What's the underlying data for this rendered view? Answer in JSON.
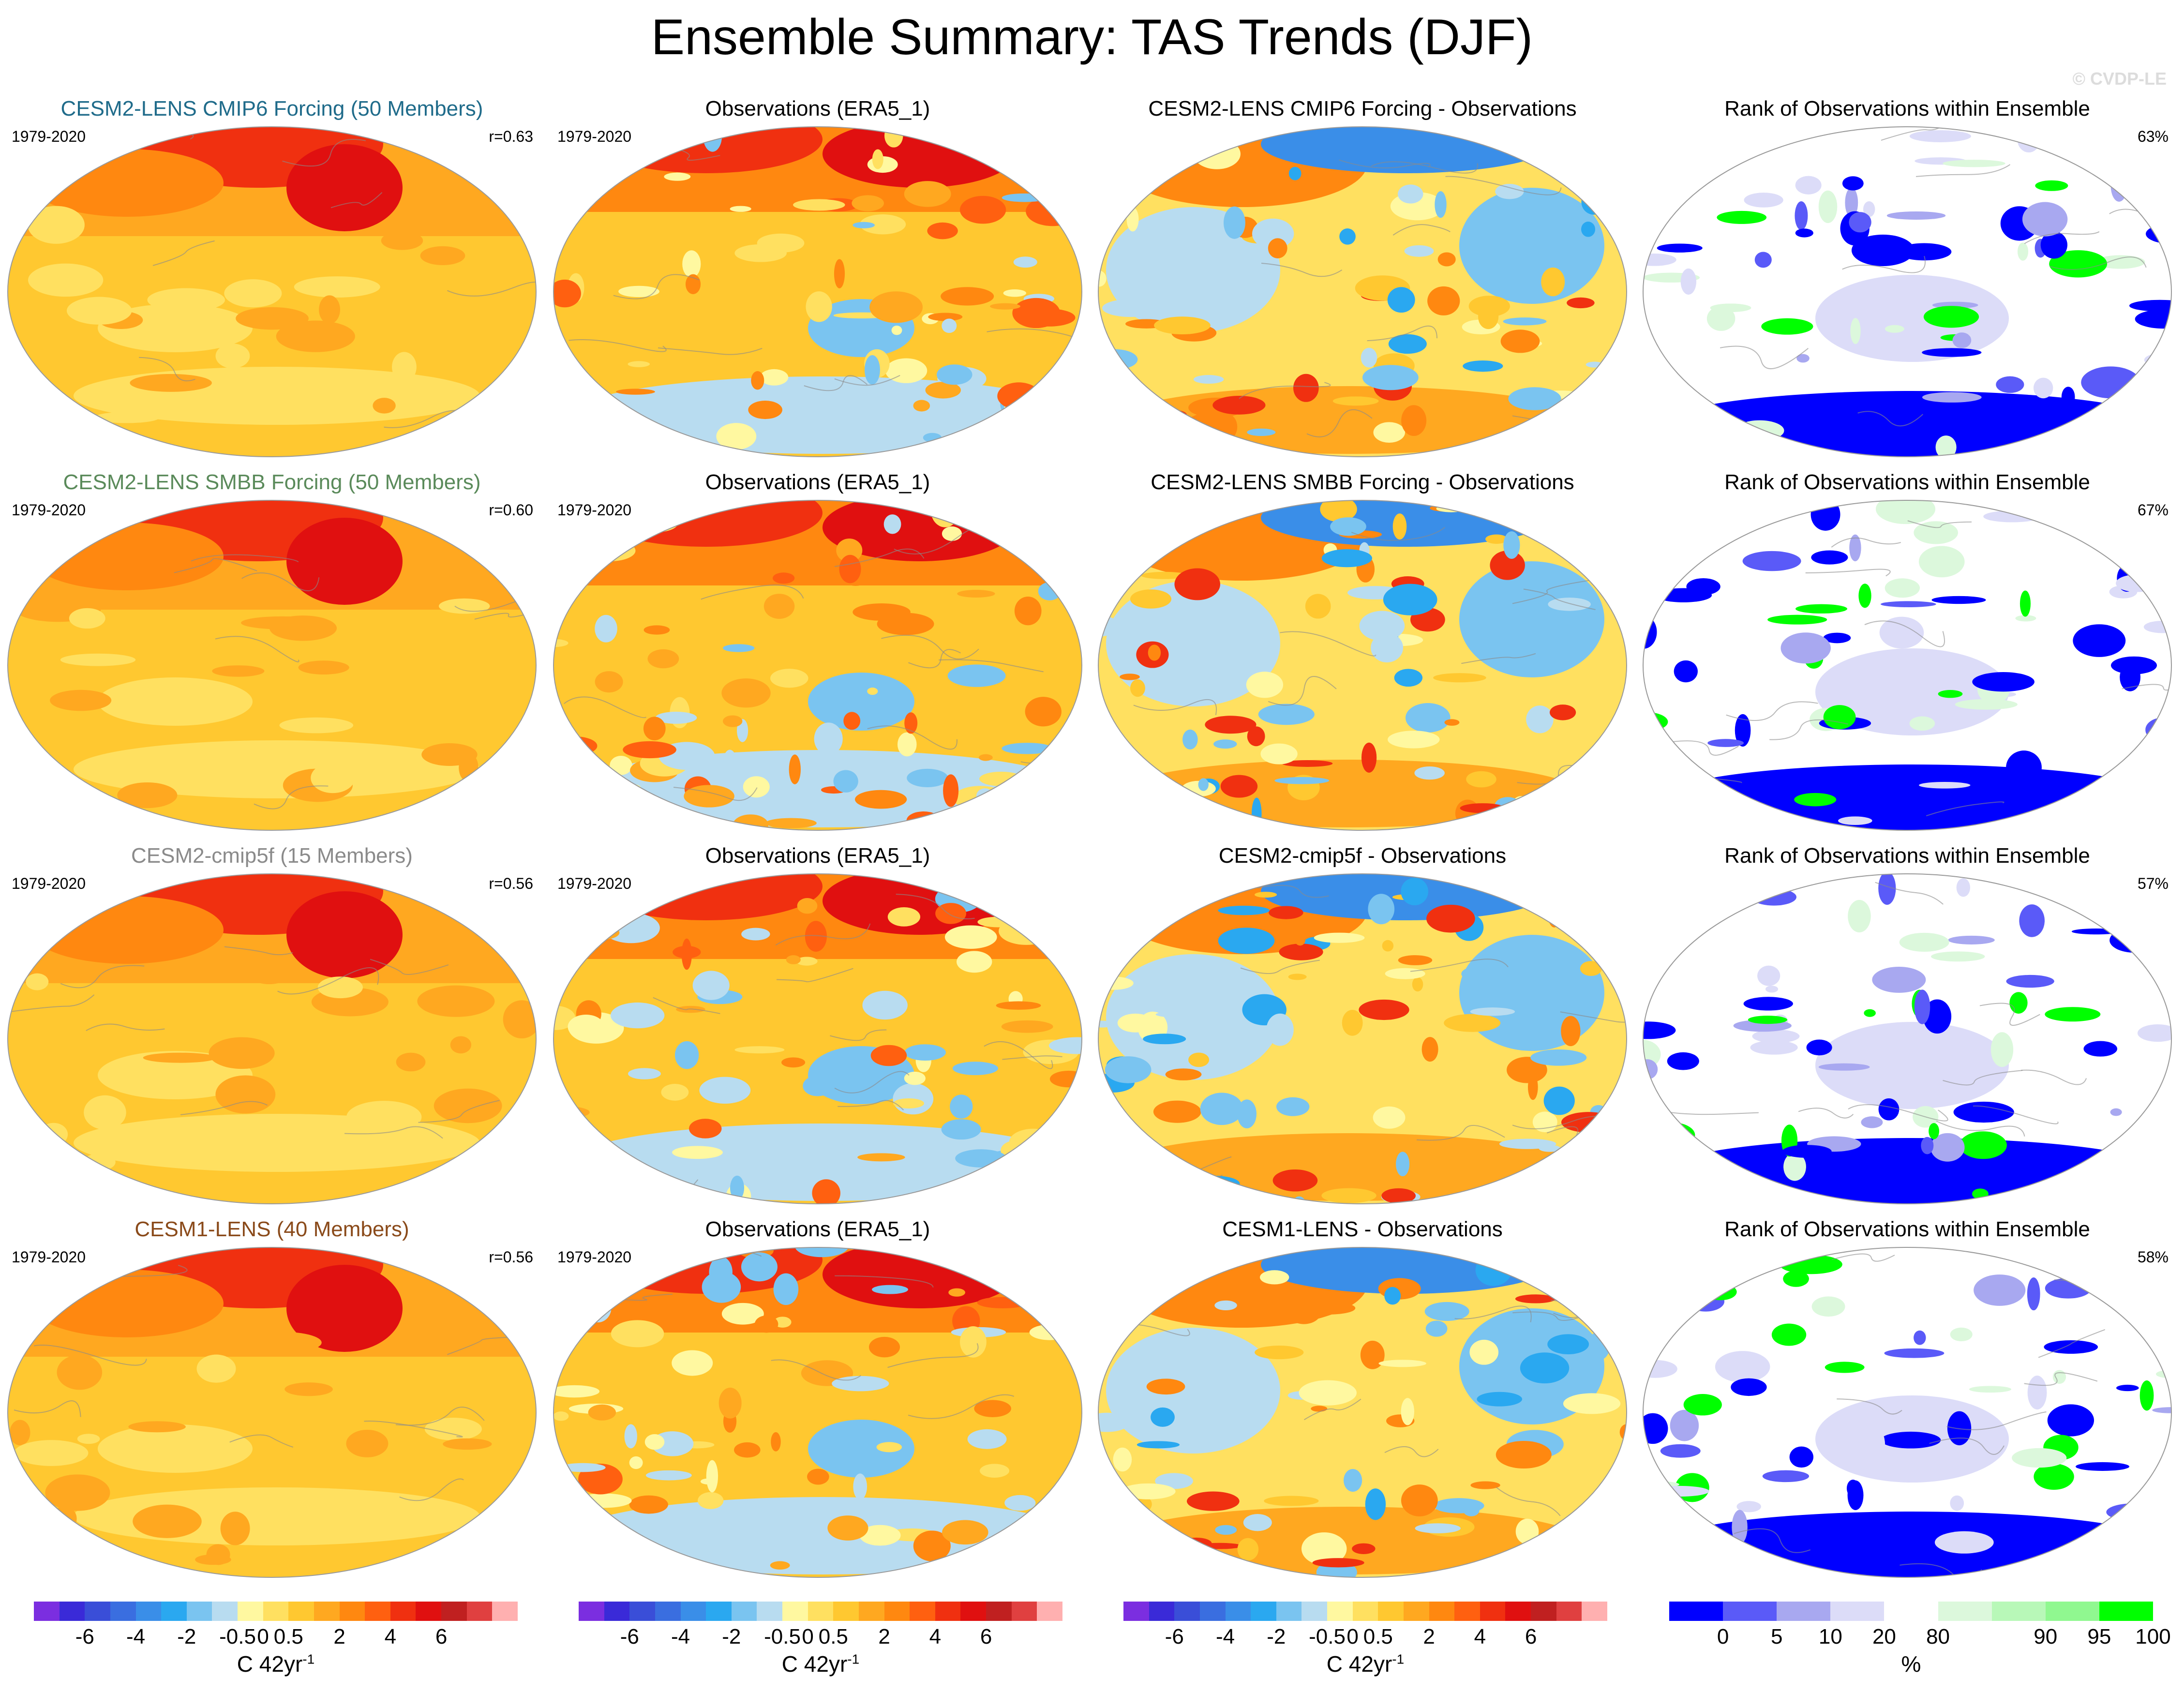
{
  "title": "Ensemble Summary: TAS Trends (DJF)",
  "copyright": "© CVDP-LE",
  "colors": {
    "title_row1": "#1f6b8a",
    "title_row2": "#5a8a5a",
    "title_row3": "#8a8a8a",
    "title_row4": "#8a4a1a"
  },
  "rows": [
    {
      "model_title": "CESM2-LENS CMIP6 Forcing (50 Members)",
      "period": "1979-2020",
      "correlation": "r=0.63",
      "obs_title": "Observations (ERA5_1)",
      "obs_period": "1979-2020",
      "diff_title": "CESM2-LENS CMIP6 Forcing - Observations",
      "rank_title": "Rank of Observations within Ensemble",
      "rank_pct": "63%"
    },
    {
      "model_title": "CESM2-LENS SMBB Forcing (50 Members)",
      "period": "1979-2020",
      "correlation": "r=0.60",
      "obs_title": "Observations (ERA5_1)",
      "obs_period": "1979-2020",
      "diff_title": "CESM2-LENS SMBB Forcing - Observations",
      "rank_title": "Rank of Observations within Ensemble",
      "rank_pct": "67%"
    },
    {
      "model_title": "CESM2-cmip5f (15 Members)",
      "period": "1979-2020",
      "correlation": "r=0.56",
      "obs_title": "Observations (ERA5_1)",
      "obs_period": "1979-2020",
      "diff_title": "CESM2-cmip5f - Observations",
      "rank_title": "Rank of Observations within Ensemble",
      "rank_pct": "57%"
    },
    {
      "model_title": "CESM1-LENS (40 Members)",
      "period": "1979-2020",
      "correlation": "r=0.56",
      "obs_title": "Observations (ERA5_1)",
      "obs_period": "1979-2020",
      "diff_title": "CESM1-LENS - Observations",
      "rank_title": "Rank of Observations within Ensemble",
      "rank_pct": "58%"
    }
  ],
  "trend_colorbar": {
    "colors": [
      "#7b2ee0",
      "#3a2ad8",
      "#3a4ed8",
      "#3a6ee0",
      "#3a8ee8",
      "#2aa8f0",
      "#7ac4f0",
      "#b8dcf0",
      "#fff8a0",
      "#ffe060",
      "#ffc830",
      "#ffa820",
      "#ff8810",
      "#ff6010",
      "#f03010",
      "#e01010",
      "#c02020",
      "#e04040",
      "#ffb0b0"
    ],
    "ticks": [
      "-6",
      "-4",
      "-2",
      "-0.5",
      "0",
      "0.5",
      "2",
      "4",
      "6"
    ],
    "label": "C 42yr",
    "label_sup": "-1"
  },
  "rank_colorbar": {
    "colors": [
      "#0000ff",
      "#5a5af8",
      "#a8a8f0",
      "#dcdcf8",
      "#ffffff",
      "#dcf8dc",
      "#b8f8b8",
      "#90f890",
      "#00ff00"
    ],
    "ticks": [
      "0",
      "5",
      "10",
      "20",
      "80",
      "90",
      "95",
      "100"
    ],
    "label": "%"
  }
}
